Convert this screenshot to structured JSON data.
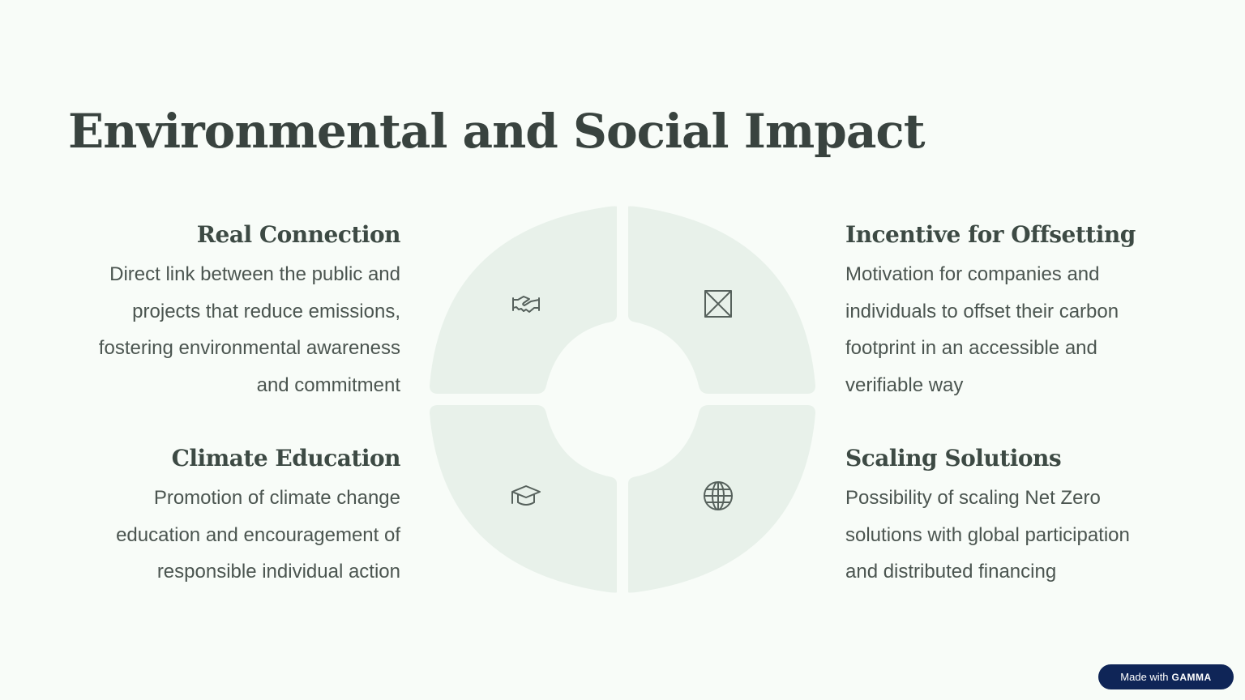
{
  "title": "Environmental and Social Impact",
  "sections": {
    "real_connection": {
      "heading": "Real Connection",
      "body": "Direct link between the public and projects that reduce emissions, fostering environmental awareness and commitment",
      "icon": "handshake-icon"
    },
    "incentive": {
      "heading": "Incentive for Offsetting",
      "body": "Motivation for companies and individuals to offset their carbon footprint in an accessible and verifiable way",
      "icon": "arrows-icon"
    },
    "climate_education": {
      "heading": "Climate Education",
      "body": "Promotion of climate change education and encouragement of responsible individual action",
      "icon": "graduation-cap-icon"
    },
    "scaling": {
      "heading": "Scaling Solutions",
      "body": "Possibility of scaling Net Zero solutions with global participation and distributed financing",
      "icon": "globe-icon"
    }
  },
  "badge": {
    "prefix": "Made with",
    "brand": "GAMMA"
  },
  "colors": {
    "background": "#f8fcf8",
    "quadrant": "#e8f1ea",
    "text": "#3a4440",
    "badge": "#0f2557"
  }
}
